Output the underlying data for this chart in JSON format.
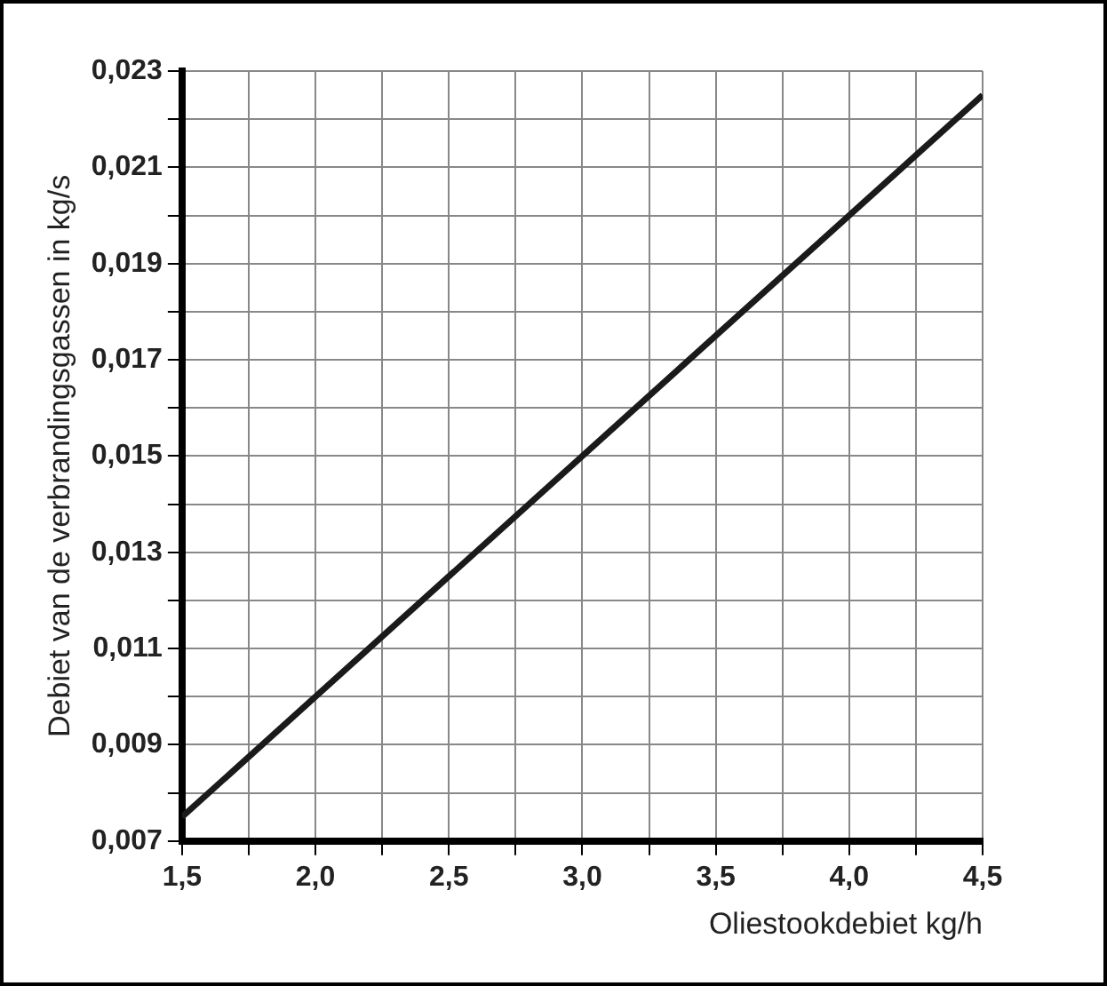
{
  "chart_data": {
    "type": "line",
    "xlabel": "Oliestookdebiet kg/h",
    "ylabel": "Debiet van de verbrandingsgassen in kg/s",
    "x": [
      1.5,
      4.5
    ],
    "series": [
      {
        "color": "#1a1a1a",
        "values": [
          0.0075,
          0.0225
        ]
      }
    ],
    "xlim": [
      1.5,
      4.5
    ],
    "xticks": [
      {
        "value": 1.5,
        "label": "1,5"
      },
      {
        "value": 1.75,
        "label": null
      },
      {
        "value": 2,
        "label": "2,0"
      },
      {
        "value": 2.25,
        "label": null
      },
      {
        "value": 2.5,
        "label": "2,5"
      },
      {
        "value": 2.75,
        "label": null
      },
      {
        "value": 3,
        "label": "3,0"
      },
      {
        "value": 3.25,
        "label": null
      },
      {
        "value": 3.5,
        "label": "3,5"
      },
      {
        "value": 3.75,
        "label": null
      },
      {
        "value": 4,
        "label": "4,0"
      },
      {
        "value": 4.25,
        "label": null
      },
      {
        "value": 4.5,
        "label": "4,5"
      }
    ],
    "ylim": [
      0.007,
      0.023
    ],
    "yticks": [
      {
        "value": 0.007,
        "label": "0,007"
      },
      {
        "value": 0.008,
        "label": null
      },
      {
        "value": 0.009,
        "label": "0,009"
      },
      {
        "value": 0.01,
        "label": null
      },
      {
        "value": 0.011,
        "label": "0,011"
      },
      {
        "value": 0.012,
        "label": null
      },
      {
        "value": 0.013,
        "label": "0,013"
      },
      {
        "value": 0.014,
        "label": null
      },
      {
        "value": 0.015,
        "label": "0,015"
      },
      {
        "value": 0.016,
        "label": null
      },
      {
        "value": 0.017,
        "label": "0,017"
      },
      {
        "value": 0.018,
        "label": null
      },
      {
        "value": 0.019,
        "label": "0,019"
      },
      {
        "value": 0.02,
        "label": null
      },
      {
        "value": 0.021,
        "label": "0,021"
      },
      {
        "value": 0.022,
        "label": null
      },
      {
        "value": 0.023,
        "label": "0,023"
      }
    ],
    "grid": true,
    "legend": false,
    "marker": "none",
    "line_style": "solid"
  }
}
